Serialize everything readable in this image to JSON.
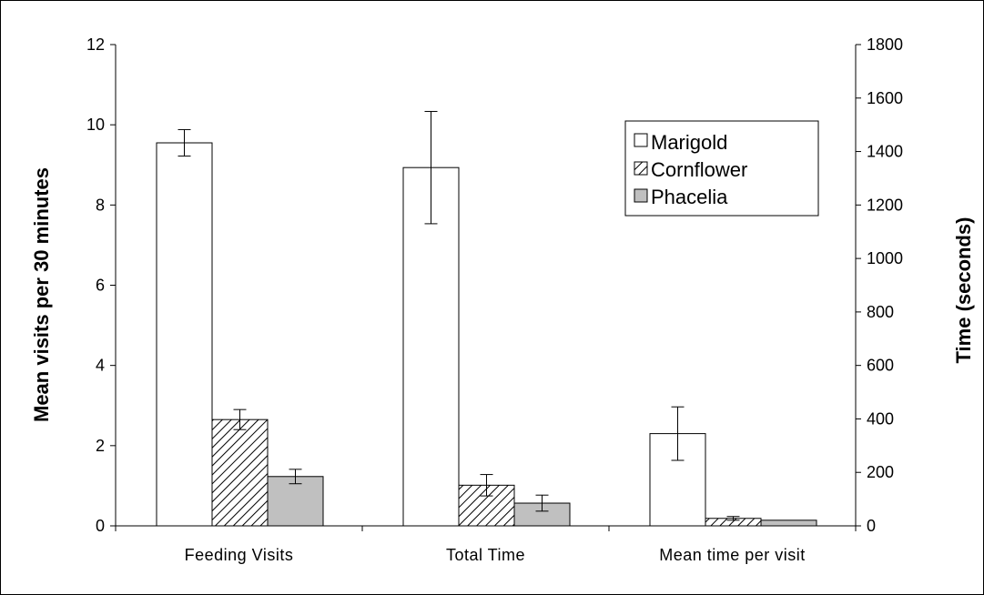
{
  "chart_data": {
    "type": "bar",
    "categories": [
      "Feeding Visits",
      "Total Time",
      "Mean time per visit"
    ],
    "left_axis": {
      "label": "Mean visits per 30 minutes",
      "range": [
        0,
        12
      ],
      "ticks": [
        "0",
        "2",
        "4",
        "6",
        "8",
        "10",
        "12"
      ]
    },
    "right_axis": {
      "label": "Time (seconds)",
      "range": [
        0,
        1800
      ],
      "ticks": [
        "0",
        "200",
        "400",
        "600",
        "800",
        "1000",
        "1200",
        "1400",
        "1600",
        "1800"
      ]
    },
    "series": [
      {
        "name": "Marigold",
        "fill": "#ffffff",
        "pattern": "none",
        "values": [
          9.55,
          1340,
          345
        ],
        "errors": [
          0.33,
          210,
          100
        ],
        "value_axis": [
          "left",
          "right",
          "right"
        ]
      },
      {
        "name": "Cornflower",
        "fill": "#ffffff",
        "pattern": "diagonal-hatch",
        "values": [
          2.65,
          152,
          28
        ],
        "errors": [
          0.25,
          40,
          7
        ],
        "value_axis": [
          "left",
          "right",
          "right"
        ]
      },
      {
        "name": "Phacelia",
        "fill": "#c0c0c0",
        "pattern": "none",
        "values": [
          1.23,
          85,
          21
        ],
        "errors": [
          0.18,
          30,
          0
        ],
        "value_axis": [
          "left",
          "right",
          "right"
        ]
      }
    ],
    "legend": {
      "position": "top-right",
      "boxed": true
    },
    "grid": false
  }
}
